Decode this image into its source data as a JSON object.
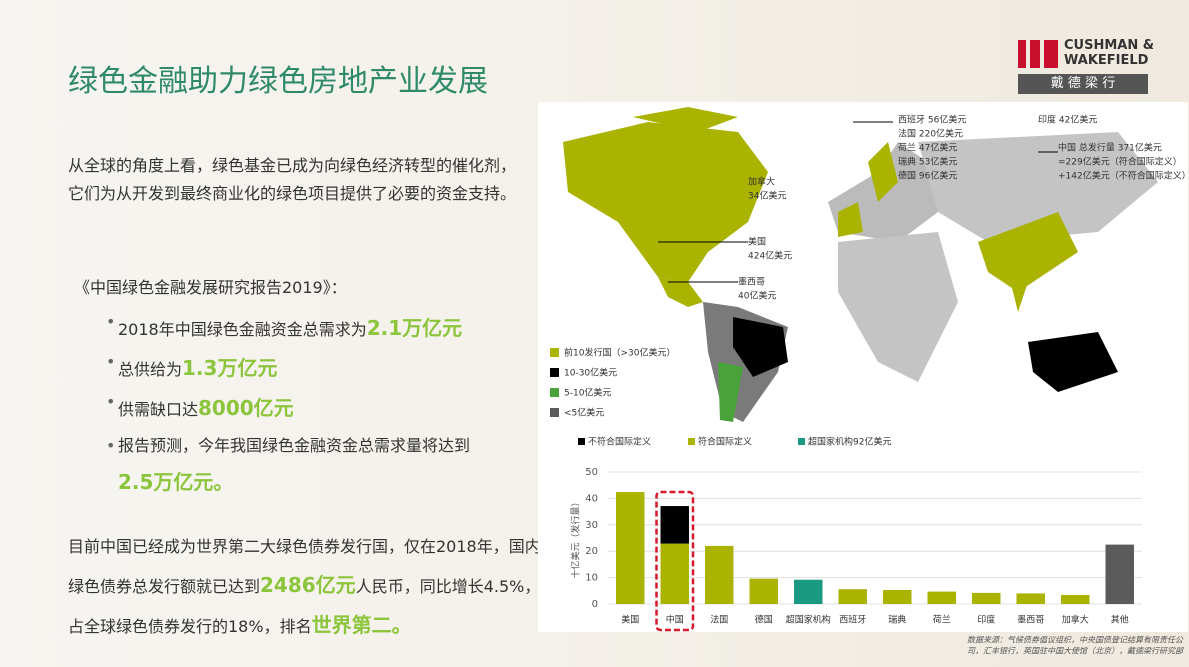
{
  "header": {
    "title": "绿色金融助力绿色房地产业发展",
    "logo_en_1": "CUSHMAN &",
    "logo_en_2": "WAKEFIELD",
    "logo_cn": "戴 德 梁 行"
  },
  "intro": "从全球的角度上看，绿色基金已成为向绿色经济转型的催化剂，它们为从开发到最终商业化的绿色项目提供了必要的资金支持。",
  "report": "《中国绿色金融发展研究报告2019》：",
  "bullets": [
    {
      "text": "2018年中国绿色金融资金总需求为",
      "highlight": "2.1万亿元"
    },
    {
      "text": "总供给为",
      "highlight": "1.3万亿元"
    },
    {
      "text": "供需缺口达",
      "highlight": "8000亿元"
    },
    {
      "text": "报告预测，今年我国绿色金融资金总需求量将达到",
      "highlight": "2.5万亿元。"
    }
  ],
  "closing": {
    "p1": "目前中国已经成为世界第二大绿色债券发行国，仅在2018年，国内绿色债券总发行额就已达到",
    "h1": "2486亿元",
    "p2": "人民币，同比增长4.5%，占全球绿色债券发行的18%，排名",
    "h2": "世界第二。"
  },
  "map": {
    "labels": [
      "西班牙 56亿美元",
      "法国 220亿美元",
      "荷兰 47亿美元",
      "瑞典 53亿美元",
      "德国 96亿美元",
      "印度 42亿美元",
      "中国 总发行量 371亿美元",
      "=229亿美元（符合国际定义）",
      "+142亿美元（不符合国际定义）",
      "加拿大",
      "34亿美元",
      "美国",
      "424亿美元",
      "墨西哥",
      "40亿美元"
    ],
    "legend": [
      "前10发行国（>30亿美元）",
      "10-30亿美元",
      "5-10亿美元",
      "<5亿美元"
    ]
  },
  "chart_data": {
    "type": "bar",
    "y_label": "十亿美元（发行量）",
    "categories": [
      "美国",
      "中国",
      "法国",
      "德国",
      "超国家机构",
      "西班牙",
      "瑞典",
      "荷兰",
      "印度",
      "墨西哥",
      "加拿大",
      "其他"
    ],
    "series": [
      {
        "name": "不符合国际定义",
        "color": "#000000",
        "values": [
          null,
          14.2,
          null,
          null,
          null,
          null,
          null,
          null,
          null,
          null,
          null,
          null
        ]
      },
      {
        "name": "符合国际定义",
        "color": "#a9b300",
        "colors": [
          "#a9b300",
          "#a9b300",
          "#a9b300",
          "#a9b300",
          "#a9b300",
          "#a9b300",
          "#a9b300",
          "#a9b300",
          "#a9b300",
          "#a9b300",
          "#a9b300",
          "#5b5b5b"
        ],
        "values": [
          42.4,
          22.9,
          22.0,
          9.6,
          null,
          5.6,
          5.3,
          4.7,
          4.2,
          4.0,
          3.4,
          22.5
        ]
      },
      {
        "name": "超国家机构92亿美元",
        "color": "#1a9a82",
        "values": [
          null,
          null,
          null,
          null,
          9.2,
          null,
          null,
          null,
          null,
          null,
          null,
          null
        ]
      }
    ],
    "ylim": [
      0,
      50
    ],
    "yticks": [
      0,
      10,
      20,
      30,
      40,
      50
    ],
    "grid": true
  },
  "source": [
    "数据来源：气候债券倡议组织，中央国债登记结算有限责任公",
    "司，汇丰银行，英国驻中国大使馆（北京），戴德梁行研究部"
  ]
}
